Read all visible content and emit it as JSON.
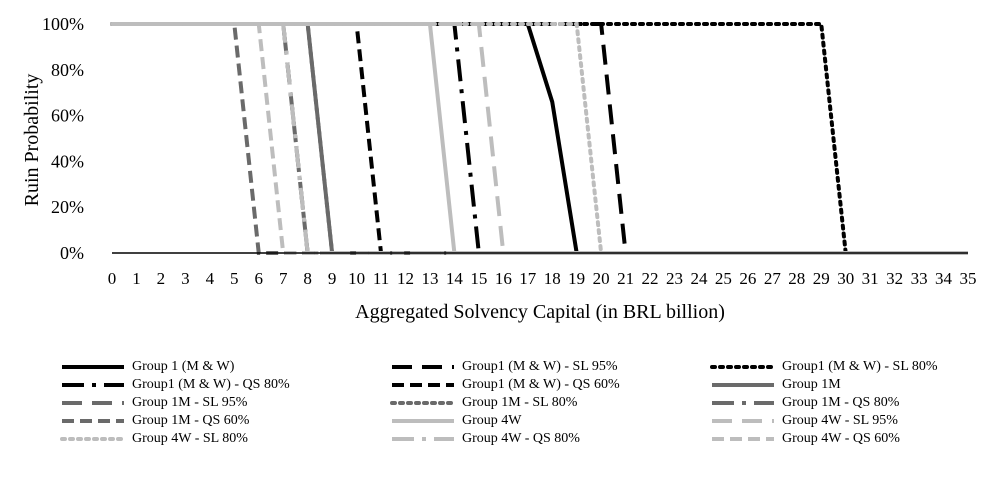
{
  "chart_data": {
    "type": "line",
    "xlabel": "Aggregated Solvency Capital (in BRL billion)",
    "ylabel": "Ruin Probability",
    "x_ticks": [
      0,
      1,
      2,
      3,
      4,
      5,
      6,
      7,
      8,
      9,
      10,
      11,
      12,
      13,
      14,
      15,
      16,
      17,
      18,
      19,
      20,
      21,
      22,
      23,
      24,
      25,
      26,
      27,
      28,
      29,
      30,
      31,
      32,
      33,
      34,
      35
    ],
    "y_ticks": [
      "0%",
      "20%",
      "40%",
      "60%",
      "80%",
      "100%"
    ],
    "xlim": [
      0,
      35
    ],
    "ylim": [
      0,
      1
    ],
    "grid": false,
    "legend_position": "bottom",
    "series": [
      {
        "name": "Group 1 (M & W)",
        "color": "#000000",
        "dash": "solid",
        "points": [
          [
            0,
            1
          ],
          [
            17,
            1
          ],
          [
            18,
            0.66
          ],
          [
            19,
            0
          ],
          [
            35,
            0
          ]
        ]
      },
      {
        "name": "Group1 (M & W) - SL 95%",
        "color": "#000000",
        "dash": "longdash",
        "points": [
          [
            0,
            1
          ],
          [
            20,
            1
          ],
          [
            21,
            0
          ],
          [
            35,
            0
          ]
        ]
      },
      {
        "name": "Group1 (M & W) - SL 80%",
        "color": "#000000",
        "dash": "dot",
        "points": [
          [
            0,
            1
          ],
          [
            29,
            1
          ],
          [
            30,
            0
          ],
          [
            35,
            0
          ]
        ]
      },
      {
        "name": "Group1 (M & W) - QS 80%",
        "color": "#000000",
        "dash": "longdashdot",
        "points": [
          [
            0,
            1
          ],
          [
            14,
            1
          ],
          [
            15,
            0
          ],
          [
            35,
            0
          ]
        ]
      },
      {
        "name": "Group1 (M & W) - QS 60%",
        "color": "#000000",
        "dash": "dash",
        "points": [
          [
            0,
            1
          ],
          [
            10,
            1
          ],
          [
            11,
            0
          ],
          [
            35,
            0
          ]
        ]
      },
      {
        "name": "Group 1M",
        "color": "#6a6a6a",
        "dash": "solid",
        "points": [
          [
            0,
            1
          ],
          [
            8,
            1
          ],
          [
            9,
            0
          ],
          [
            35,
            0
          ]
        ]
      },
      {
        "name": "Group 1M - SL 95%",
        "color": "#6a6a6a",
        "dash": "longdash",
        "points": [
          [
            0,
            1
          ],
          [
            7,
            1
          ],
          [
            8,
            0
          ],
          [
            35,
            0
          ]
        ]
      },
      {
        "name": "Group 1M - SL 80%",
        "color": "#6a6a6a",
        "dash": "dot",
        "points": [
          [
            0,
            1
          ],
          [
            8,
            1
          ],
          [
            9,
            0
          ],
          [
            35,
            0
          ]
        ]
      },
      {
        "name": "Group 1M - QS 80%",
        "color": "#6a6a6a",
        "dash": "longdashdot",
        "points": [
          [
            0,
            1
          ],
          [
            7,
            1
          ],
          [
            8,
            0
          ],
          [
            35,
            0
          ]
        ]
      },
      {
        "name": "Group 1M - QS 60%",
        "color": "#6a6a6a",
        "dash": "dash",
        "points": [
          [
            0,
            1
          ],
          [
            5,
            1
          ],
          [
            6,
            0
          ],
          [
            35,
            0
          ]
        ]
      },
      {
        "name": "Group 4W",
        "color": "#bdbdbd",
        "dash": "solid",
        "points": [
          [
            0,
            1
          ],
          [
            13,
            1
          ],
          [
            14,
            0
          ],
          [
            35,
            0
          ]
        ]
      },
      {
        "name": "Group 4W - SL 95%",
        "color": "#bdbdbd",
        "dash": "longdash",
        "points": [
          [
            0,
            1
          ],
          [
            15,
            1
          ],
          [
            16,
            0
          ],
          [
            35,
            0
          ]
        ]
      },
      {
        "name": "Group 4W - SL 80%",
        "color": "#bdbdbd",
        "dash": "dot",
        "points": [
          [
            0,
            1
          ],
          [
            19,
            1
          ],
          [
            20,
            0
          ],
          [
            35,
            0
          ]
        ]
      },
      {
        "name": "Group 4W - QS 80%",
        "color": "#bdbdbd",
        "dash": "longdashdot",
        "points": [
          [
            0,
            1
          ],
          [
            7,
            1
          ],
          [
            8,
            0
          ],
          [
            35,
            0
          ]
        ]
      },
      {
        "name": "Group 4W - QS 60%",
        "color": "#bdbdbd",
        "dash": "dash",
        "points": [
          [
            0,
            1
          ],
          [
            6,
            1
          ],
          [
            7,
            0
          ],
          [
            35,
            0
          ]
        ]
      }
    ]
  }
}
